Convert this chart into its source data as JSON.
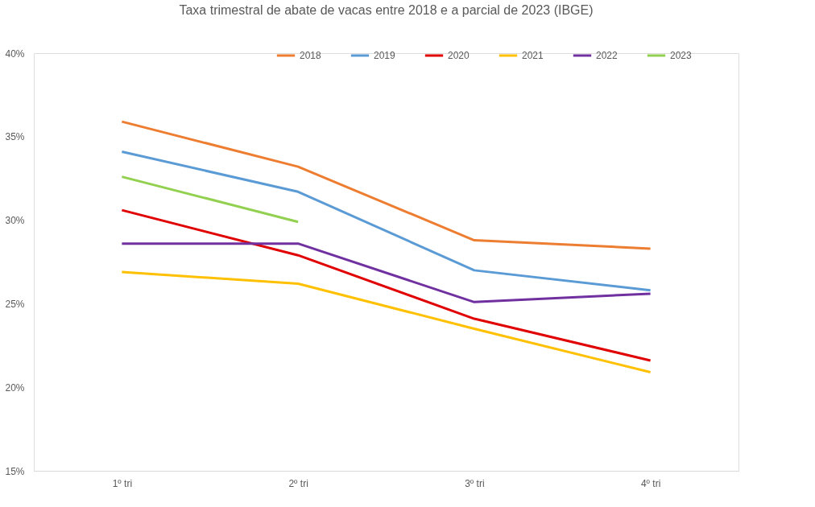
{
  "chart_data": {
    "type": "line",
    "title": "Taxa trimestral de abate de vacas entre 2018 e a parcial de 2023 (IBGE)",
    "categories": [
      "1º tri",
      "2º tri",
      "3º tri",
      "4º tri"
    ],
    "series": [
      {
        "name": "2018",
        "color": "#ed7d31",
        "values": [
          35.9,
          33.2,
          28.8,
          28.3
        ]
      },
      {
        "name": "2019",
        "color": "#5b9bd5",
        "values": [
          34.1,
          31.7,
          27.0,
          25.8
        ]
      },
      {
        "name": "2020",
        "color": "#e00000",
        "values": [
          30.6,
          27.9,
          24.1,
          21.6
        ]
      },
      {
        "name": "2021",
        "color": "#ffc000",
        "values": [
          26.9,
          26.2,
          23.5,
          20.9
        ]
      },
      {
        "name": "2022",
        "color": "#7030a0",
        "values": [
          28.6,
          28.6,
          25.1,
          25.6
        ]
      },
      {
        "name": "2023",
        "color": "#92d050",
        "values": [
          32.6,
          29.9,
          null,
          null
        ]
      }
    ],
    "ylim": [
      15,
      40
    ],
    "yticks": [
      {
        "value": 15,
        "label": "15%"
      },
      {
        "value": 20,
        "label": "20%"
      },
      {
        "value": 25,
        "label": "25%"
      },
      {
        "value": 30,
        "label": "30%"
      },
      {
        "value": 35,
        "label": "35%"
      },
      {
        "value": 40,
        "label": "40%"
      }
    ],
    "grid": false,
    "legend": "top",
    "marker": "none",
    "line_style": "solid"
  }
}
